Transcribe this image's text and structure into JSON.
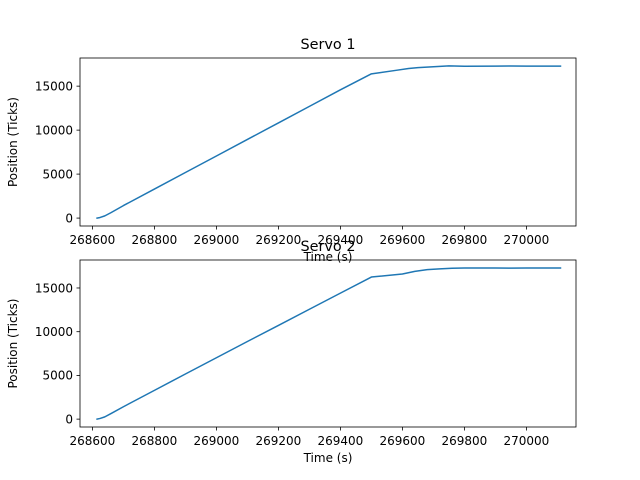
{
  "chart_data": [
    {
      "type": "line",
      "title": "Servo 1",
      "xlabel": "Time (s)",
      "ylabel": "Position (Ticks)",
      "xlim": [
        268560,
        270160
      ],
      "ylim": [
        -900,
        18200
      ],
      "xticks": [
        268600,
        268800,
        269000,
        269200,
        269400,
        269600,
        269800,
        270000
      ],
      "yticks": [
        0,
        5000,
        10000,
        15000
      ],
      "grid": false,
      "color": "#1f77b4",
      "series": [
        {
          "x": [
            268615,
            268625,
            268640,
            268660,
            268700,
            268800,
            268900,
            269000,
            269100,
            269200,
            269300,
            269400,
            269500,
            269580,
            269620,
            269650,
            269700,
            269750,
            269800,
            269900,
            269950,
            270000,
            270110
          ],
          "y": [
            0,
            70,
            250,
            620,
            1420,
            3300,
            5180,
            7060,
            8940,
            10820,
            12700,
            14580,
            16400,
            16800,
            17000,
            17100,
            17200,
            17300,
            17260,
            17270,
            17290,
            17270,
            17280
          ]
        }
      ]
    },
    {
      "type": "line",
      "title": "Servo 2",
      "xlabel": "Time (s)",
      "ylabel": "Position (Ticks)",
      "xlim": [
        268560,
        270160
      ],
      "ylim": [
        -900,
        18200
      ],
      "xticks": [
        268600,
        268800,
        269000,
        269200,
        269400,
        269600,
        269800,
        270000
      ],
      "yticks": [
        0,
        5000,
        10000,
        15000
      ],
      "grid": false,
      "color": "#1f77b4",
      "series": [
        {
          "x": [
            268615,
            268625,
            268640,
            268660,
            268700,
            268800,
            268900,
            269000,
            269100,
            269200,
            269300,
            269400,
            269500,
            269600,
            269640,
            269680,
            269720,
            269760,
            269800,
            269900,
            269950,
            270000,
            270110
          ],
          "y": [
            0,
            80,
            260,
            640,
            1420,
            3290,
            5160,
            7020,
            8880,
            10720,
            12570,
            14410,
            16250,
            16600,
            16900,
            17100,
            17180,
            17250,
            17280,
            17280,
            17270,
            17280,
            17290
          ]
        }
      ]
    }
  ]
}
